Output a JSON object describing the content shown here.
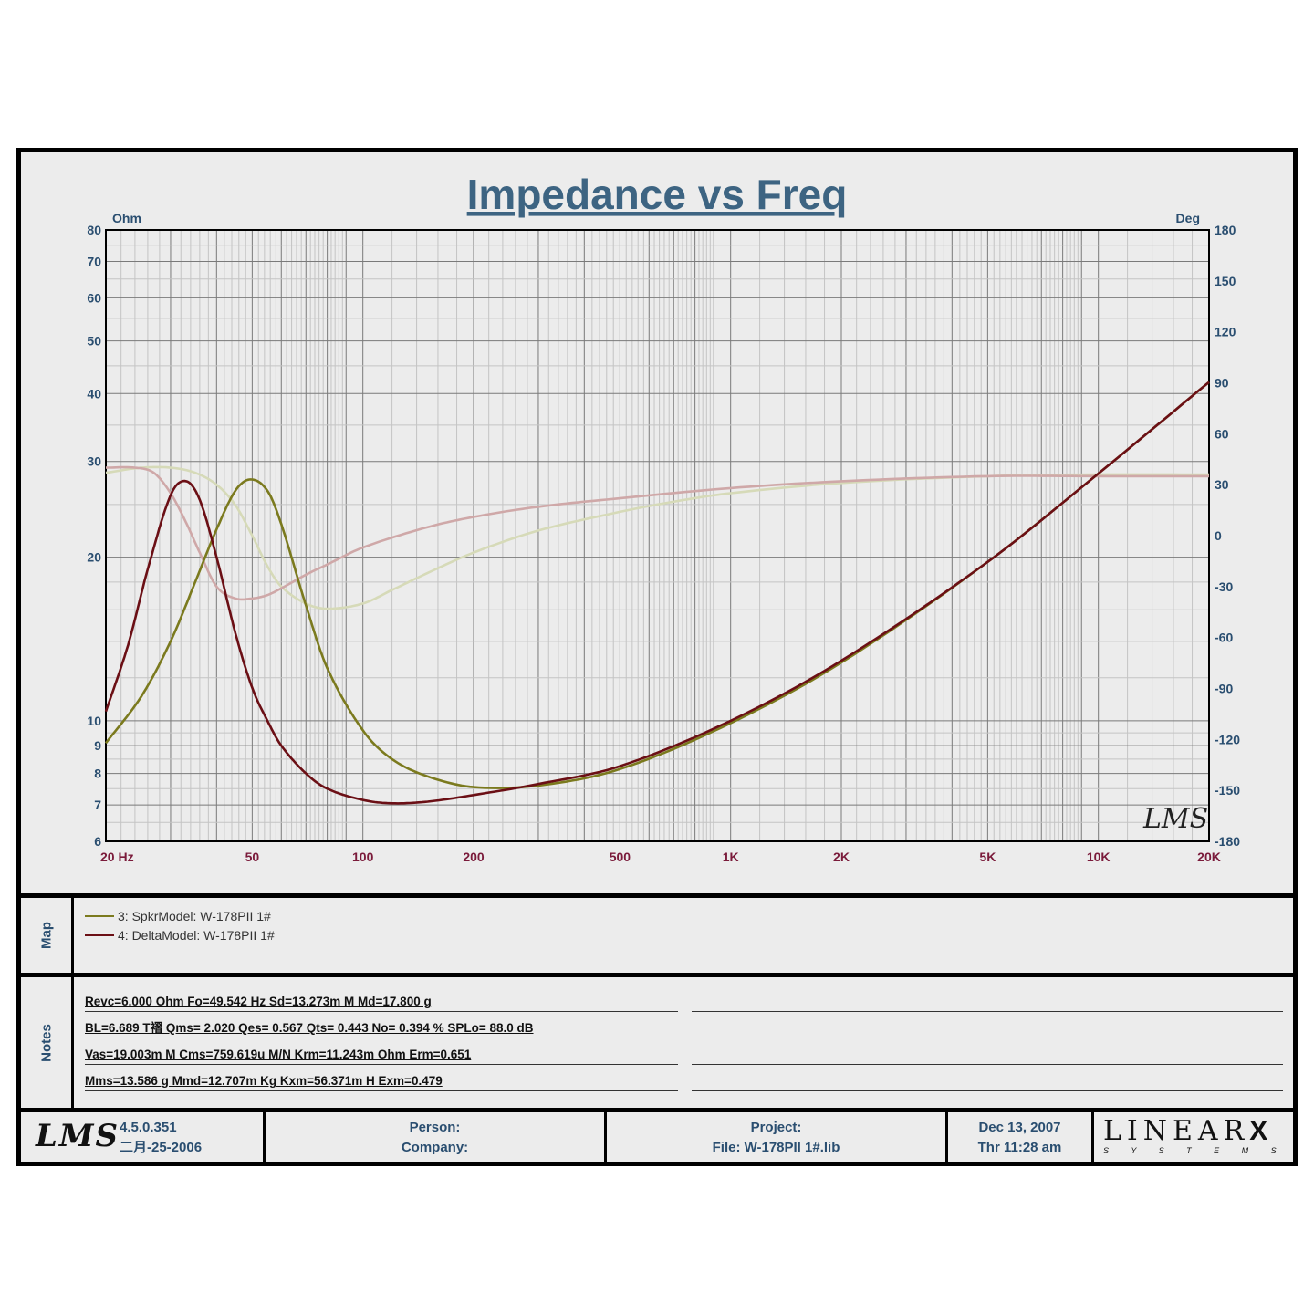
{
  "chart_data": {
    "type": "line",
    "title": "Impedance vs Freq",
    "x_scale": "log",
    "xlim": [
      20,
      20000
    ],
    "x_ticks": [
      "20 Hz",
      "50",
      "100",
      "200",
      "500",
      "1K",
      "2K",
      "5K",
      "10K",
      "20K"
    ],
    "x_tick_values": [
      20,
      50,
      100,
      200,
      500,
      1000,
      2000,
      5000,
      10000,
      20000
    ],
    "left_axis": {
      "unit": "Ohm",
      "scale": "log",
      "range": [
        6,
        80
      ],
      "ticks": [
        6,
        7,
        8,
        9,
        10,
        20,
        30,
        40,
        50,
        60,
        70,
        80
      ]
    },
    "right_axis": {
      "unit": "Deg",
      "scale": "linear",
      "range": [
        -180,
        180
      ],
      "ticks": [
        180,
        150,
        120,
        90,
        60,
        30,
        0,
        -30,
        -60,
        -90,
        -120,
        -150,
        -180
      ]
    },
    "grid": true,
    "logo": "LMS",
    "series": [
      {
        "name": "3: SpkrModel: W-178PII 1#",
        "kind": "impedance",
        "color": "#7b7a1e",
        "x": [
          20,
          25,
          30,
          35,
          40,
          45,
          49.5,
          55,
          60,
          70,
          80,
          100,
          120,
          150,
          200,
          300,
          500,
          1000,
          2000,
          5000,
          10000,
          20000
        ],
        "y": [
          9.1,
          11.1,
          14.0,
          18.0,
          22.5,
          26.5,
          27.8,
          26.5,
          23.0,
          16.3,
          12.5,
          9.6,
          8.5,
          7.9,
          7.55,
          7.6,
          8.15,
          9.9,
          12.8,
          19.6,
          28.5,
          42.0
        ]
      },
      {
        "name": "4: DeltaModel: W-178PII 1#",
        "kind": "impedance",
        "color": "#6b0f15",
        "x": [
          20,
          23,
          26,
          30,
          33,
          36,
          40,
          45,
          50,
          55,
          60,
          70,
          80,
          100,
          120,
          150,
          200,
          300,
          500,
          1000,
          2000,
          5000,
          10000,
          20000
        ],
        "y": [
          10.4,
          13.8,
          19.0,
          26.0,
          27.6,
          25.5,
          20.0,
          14.5,
          11.5,
          10.0,
          9.0,
          8.0,
          7.5,
          7.15,
          7.05,
          7.1,
          7.3,
          7.65,
          8.25,
          10.0,
          12.9,
          19.6,
          28.5,
          42.0
        ]
      },
      {
        "name": "3: SpkrModel: W-178PII 1# (phase)",
        "kind": "phase",
        "color": "#d6dab8",
        "x": [
          20,
          25,
          30,
          35,
          40,
          45,
          50,
          55,
          60,
          70,
          80,
          100,
          120,
          150,
          200,
          300,
          500,
          700,
          1000,
          2000,
          5000,
          10000,
          20000
        ],
        "y": [
          37,
          40,
          40,
          37,
          30,
          18,
          0,
          -18,
          -30,
          -40,
          -43,
          -40,
          -32,
          -22,
          -10,
          3,
          14,
          20,
          25,
          31,
          35,
          36,
          36
        ]
      },
      {
        "name": "4: DeltaModel: W-178PII 1# (phase)",
        "kind": "phase",
        "color": "#cfa8a8",
        "x": [
          20,
          24,
          27,
          30,
          33,
          36,
          40,
          45,
          50,
          55,
          60,
          70,
          80,
          100,
          150,
          200,
          300,
          500,
          1000,
          2000,
          5000,
          10000,
          20000
        ],
        "y": [
          40,
          40,
          37,
          25,
          8,
          -10,
          -30,
          -37,
          -37,
          -35,
          -31,
          -23,
          -17,
          -7,
          5,
          11,
          17,
          22,
          28,
          32,
          35,
          35,
          35
        ]
      }
    ]
  },
  "map": {
    "label": "Map",
    "entries": [
      {
        "text": "3: SpkrModel: W-178PII 1#",
        "color": "#7b7a1e"
      },
      {
        "text": "4: DeltaModel: W-178PII 1#",
        "color": "#6b0f15"
      }
    ]
  },
  "notes": {
    "label": "Notes",
    "lines": [
      "Revc=6.000 Ohm  Fo=49.542 Hz  Sd=13.273m M    Md=17.800 g",
      "BL=6.689 T褶  Qms= 2.020  Qes= 0.567  Qts= 0.443  No= 0.394 %  SPLo= 88.0 dB",
      "Vas=19.003m M     Cms=759.619u M/N  Krm=11.243m Ohm  Erm=0.651",
      "Mms=13.586 g  Mmd=12.707m Kg  Kxm=56.371m H  Exm=0.479"
    ]
  },
  "footer": {
    "logo": "LMS",
    "version": "4.5.0.351",
    "version_date": "二月-25-2006",
    "person_label": "Person:",
    "company_label": "Company:",
    "project_label": "Project:",
    "file_label": "File: W-178PII 1#.lib",
    "date": "Dec 13, 2007",
    "time": "Thr 11:28 am",
    "brand": "LINEAR",
    "brand_x": "X",
    "brand_sub": "S Y S T E M S"
  }
}
